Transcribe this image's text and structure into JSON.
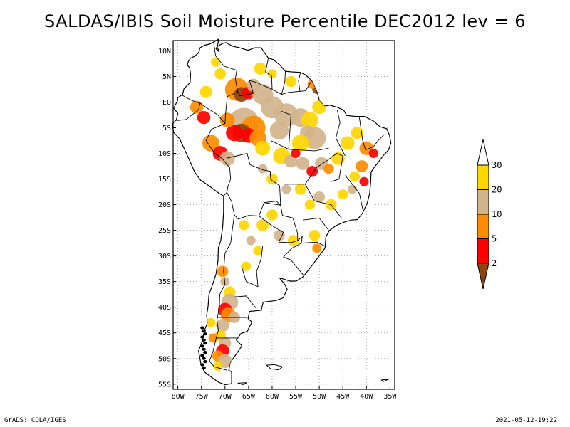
{
  "title": "SALDAS/IBIS Soil Moisture Percentile DEC2012 lev = 6",
  "footer": {
    "left": "GrADS: COLA/IGES",
    "right": "2021-05-12-19:22"
  },
  "map": {
    "lon_range": [
      -81,
      -34
    ],
    "lat_range": [
      -56,
      12
    ],
    "lat_ticks": [
      {
        "value": 10,
        "label": "10N"
      },
      {
        "value": 5,
        "label": "5N"
      },
      {
        "value": 0,
        "label": "EQ"
      },
      {
        "value": -5,
        "label": "5S"
      },
      {
        "value": -10,
        "label": "10S"
      },
      {
        "value": -15,
        "label": "15S"
      },
      {
        "value": -20,
        "label": "20S"
      },
      {
        "value": -25,
        "label": "25S"
      },
      {
        "value": -30,
        "label": "30S"
      },
      {
        "value": -35,
        "label": "35S"
      },
      {
        "value": -40,
        "label": "40S"
      },
      {
        "value": -45,
        "label": "45S"
      },
      {
        "value": -50,
        "label": "50S"
      },
      {
        "value": -55,
        "label": "55S"
      }
    ],
    "lon_ticks": [
      {
        "value": -80,
        "label": "80W"
      },
      {
        "value": -75,
        "label": "75W"
      },
      {
        "value": -70,
        "label": "70W"
      },
      {
        "value": -65,
        "label": "65W"
      },
      {
        "value": -60,
        "label": "60W"
      },
      {
        "value": -55,
        "label": "55W"
      },
      {
        "value": -50,
        "label": "50W"
      },
      {
        "value": -45,
        "label": "45W"
      },
      {
        "value": -40,
        "label": "40W"
      },
      {
        "value": -35,
        "label": "35W"
      }
    ],
    "grid": true
  },
  "colorbar": {
    "colors": [
      "#8b4513",
      "#ff0000",
      "#ff8c00",
      "#d2b48c",
      "#ffd700",
      "#ffffff"
    ],
    "labels": [
      "2",
      "5",
      "10",
      "20",
      "30"
    ]
  }
}
